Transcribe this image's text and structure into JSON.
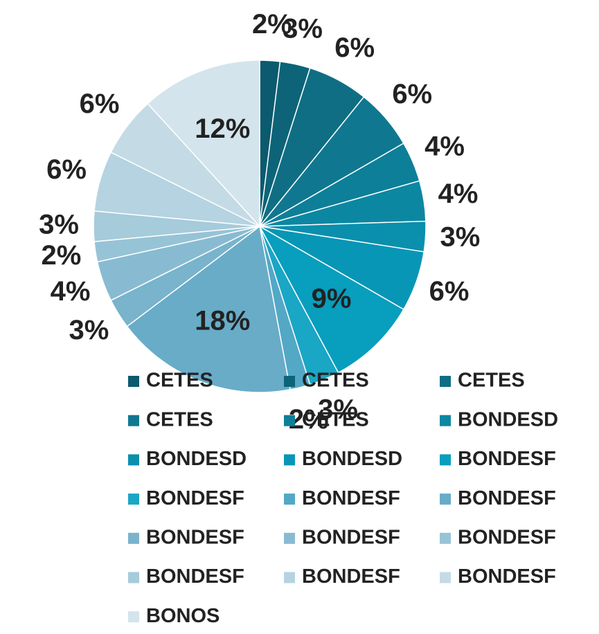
{
  "chart_data": {
    "type": "pie",
    "categories": [
      "CETES",
      "CETES",
      "CETES",
      "CETES",
      "CETES",
      "BONDESD",
      "BONDESD",
      "BONDESD",
      "BONDESF",
      "BONDESF",
      "BONDESF",
      "BONDESF",
      "BONDESF",
      "BONDESF",
      "BONDESF",
      "BONDESF",
      "BONDESF",
      "BONDESF",
      "BONOS"
    ],
    "values": [
      2,
      3,
      6,
      6,
      4,
      4,
      3,
      6,
      9,
      3,
      2,
      18,
      3,
      4,
      2,
      3,
      6,
      6,
      12
    ],
    "value_labels": [
      "2%",
      "3%",
      "6%",
      "6%",
      "4%",
      "4%",
      "3%",
      "6%",
      "9%",
      "3%",
      "2%",
      "18%",
      "3%",
      "4%",
      "2%",
      "3%",
      "6%",
      "6%",
      "12%"
    ],
    "colors": [
      "#0b5a6e",
      "#0d6479",
      "#0f6e84",
      "#0f7890",
      "#0e7f98",
      "#0c87a2",
      "#0a8fad",
      "#0896b6",
      "#089ebe",
      "#1aa6c5",
      "#53a8c6",
      "#68acc8",
      "#79b3cc",
      "#88bbd2",
      "#97c3d6",
      "#a6cbdb",
      "#b5d3e1",
      "#c4dbe6",
      "#d3e4ec"
    ]
  }
}
